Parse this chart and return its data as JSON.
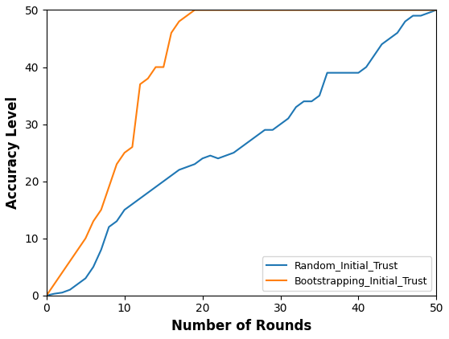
{
  "random_x": [
    0,
    1,
    2,
    3,
    4,
    5,
    6,
    7,
    8,
    9,
    10,
    11,
    12,
    13,
    14,
    15,
    16,
    17,
    18,
    19,
    20,
    21,
    22,
    23,
    24,
    25,
    26,
    27,
    28,
    29,
    30,
    31,
    32,
    33,
    34,
    35,
    36,
    37,
    38,
    39,
    40,
    41,
    42,
    43,
    44,
    45,
    46,
    47,
    48,
    49,
    50
  ],
  "random_y": [
    0,
    0.3,
    0.5,
    1,
    2,
    3,
    5,
    8,
    12,
    13,
    15,
    16,
    17,
    18,
    19,
    20,
    21,
    22,
    22.5,
    23,
    24,
    24.5,
    24,
    24.5,
    25,
    26,
    27,
    28,
    29,
    29,
    30,
    31,
    33,
    34,
    34,
    35,
    39,
    39,
    39,
    39,
    39,
    40,
    42,
    44,
    45,
    46,
    48,
    49,
    49,
    49.5,
    50
  ],
  "bootstrap_x": [
    0,
    1,
    2,
    3,
    4,
    5,
    6,
    7,
    8,
    9,
    10,
    11,
    12,
    13,
    14,
    15,
    16,
    17,
    18,
    19,
    20,
    21,
    22,
    50
  ],
  "bootstrap_y": [
    0,
    2,
    4,
    6,
    8,
    10,
    13,
    15,
    19,
    23,
    25,
    26,
    37,
    38,
    40,
    40,
    46,
    48,
    49,
    50,
    50,
    50,
    50,
    50
  ],
  "random_color": "#1f77b4",
  "bootstrap_color": "#ff7f0e",
  "xlabel": "Number of Rounds",
  "ylabel": "Accuracy Level",
  "legend_random": "Random_Initial_Trust",
  "legend_bootstrap": "Bootstrapping_Initial_Trust",
  "xlim": [
    0,
    50
  ],
  "ylim": [
    0,
    50
  ],
  "xticks": [
    0,
    10,
    20,
    30,
    40,
    50
  ],
  "yticks": [
    0,
    10,
    20,
    30,
    40,
    50
  ],
  "linewidth": 1.5
}
